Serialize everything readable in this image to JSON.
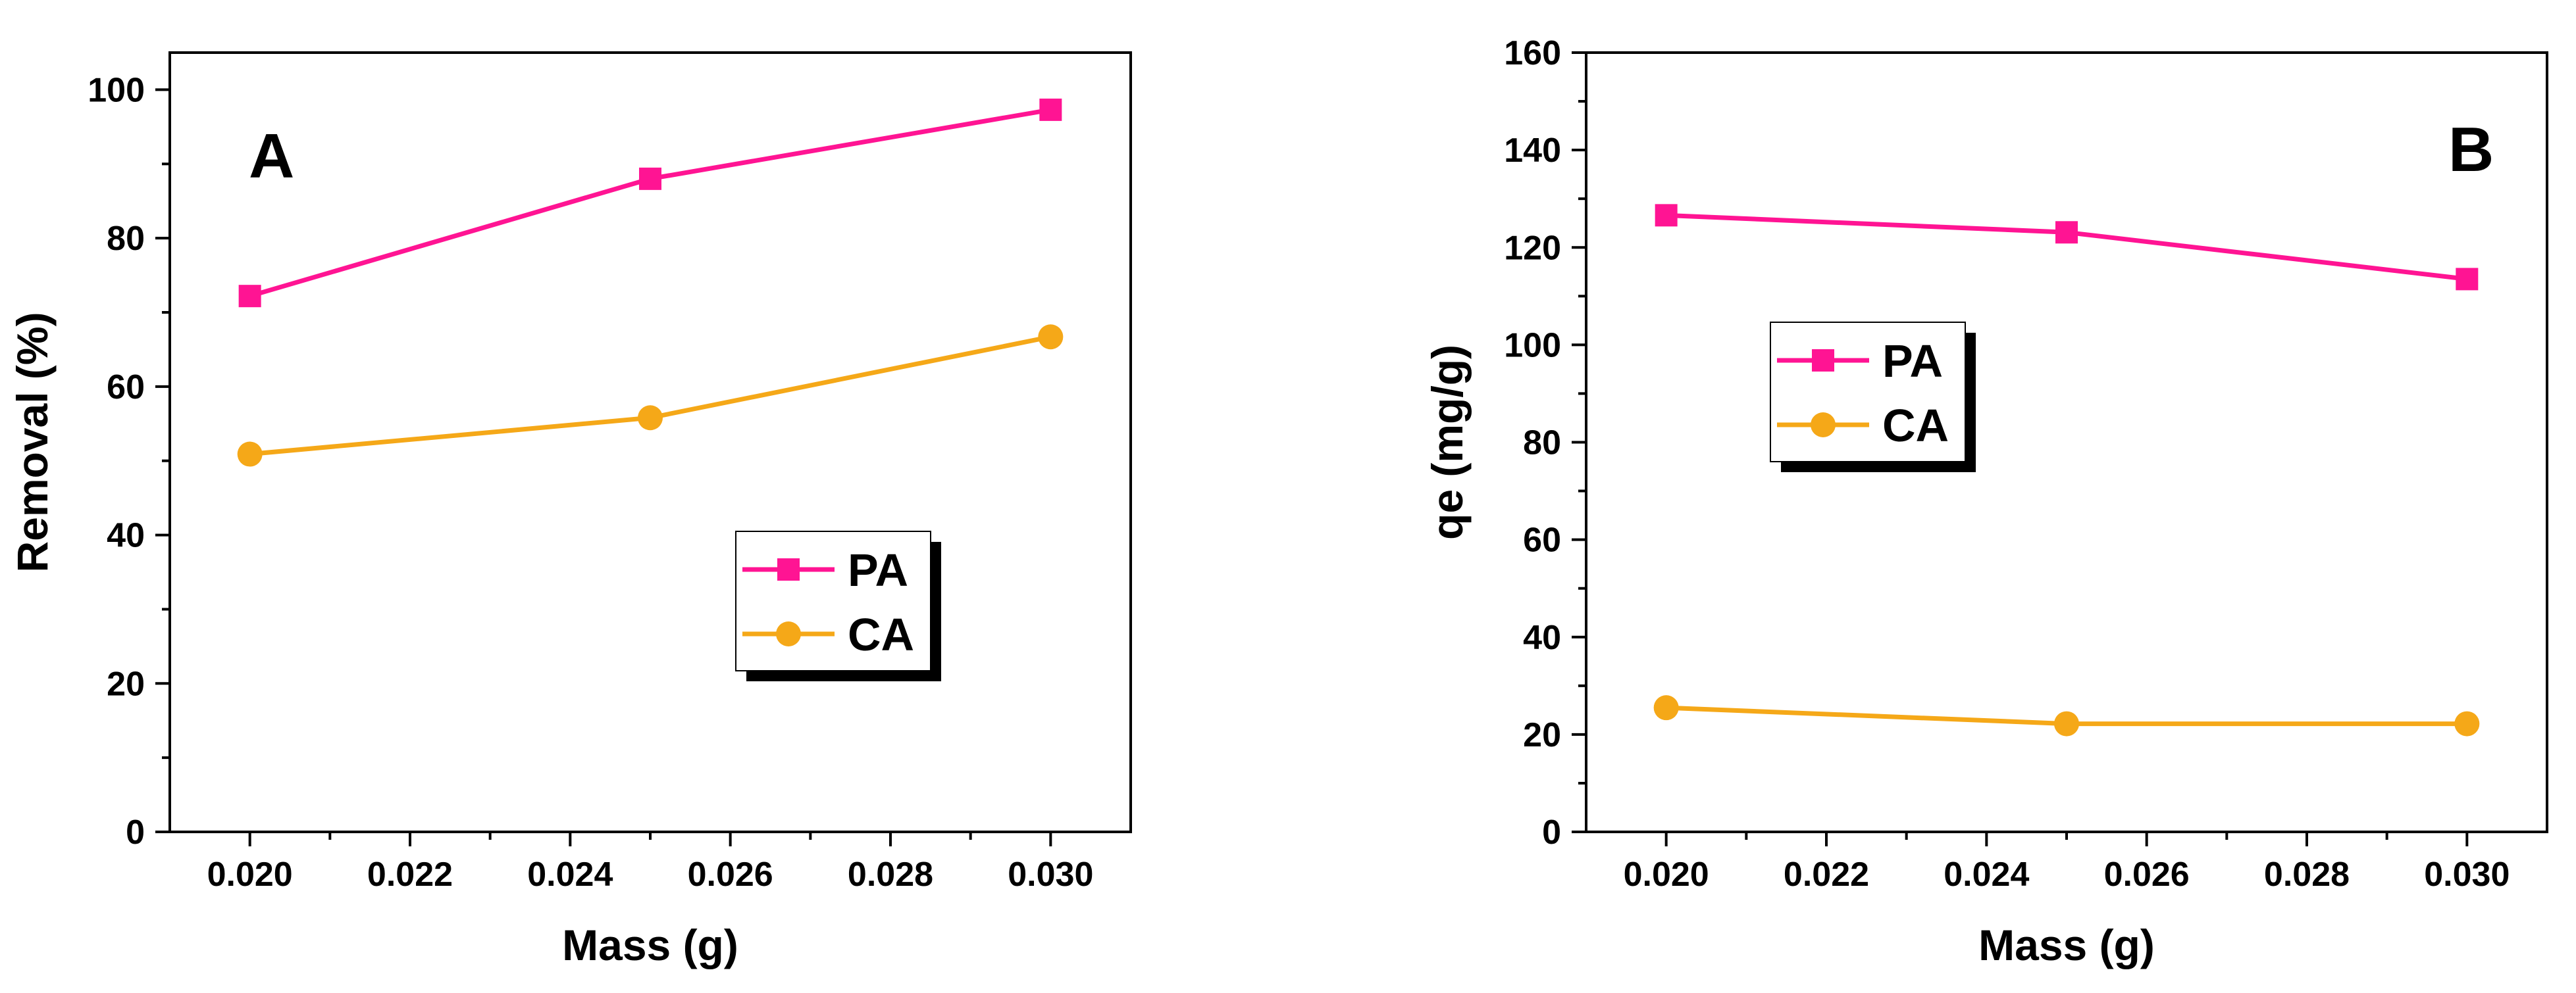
{
  "chart_data": [
    {
      "type": "line",
      "panel_label": "A",
      "xlabel": "Mass (g)",
      "ylabel": "Removal (%)",
      "x": [
        0.02,
        0.025,
        0.03
      ],
      "xlim": [
        0.019,
        0.031
      ],
      "ylim": [
        0,
        105
      ],
      "xticks": [
        "0.020",
        "0.022",
        "0.024",
        "0.026",
        "0.028",
        "0.030"
      ],
      "yticks": [
        "0",
        "20",
        "40",
        "60",
        "80",
        "100"
      ],
      "legend_position": "lower-right",
      "series": [
        {
          "name": "PA",
          "marker": "square",
          "color": "#ff1493",
          "values": [
            72.2,
            88.0,
            97.3
          ]
        },
        {
          "name": "CA",
          "marker": "circle",
          "color": "#f5a818",
          "values": [
            50.9,
            55.8,
            66.7
          ]
        }
      ]
    },
    {
      "type": "line",
      "panel_label": "B",
      "xlabel": "Mass (g)",
      "ylabel": "qe (mg/g)",
      "x": [
        0.02,
        0.025,
        0.03
      ],
      "xlim": [
        0.019,
        0.031
      ],
      "ylim": [
        0,
        160
      ],
      "xticks": [
        "0.020",
        "0.022",
        "0.024",
        "0.026",
        "0.028",
        "0.030"
      ],
      "yticks": [
        "0",
        "20",
        "40",
        "60",
        "80",
        "100",
        "120",
        "140",
        "160"
      ],
      "legend_position": "upper-left",
      "series": [
        {
          "name": "PA",
          "marker": "square",
          "color": "#ff1493",
          "values": [
            126.6,
            123.1,
            113.5
          ]
        },
        {
          "name": "CA",
          "marker": "circle",
          "color": "#f5a818",
          "values": [
            25.5,
            22.2,
            22.2
          ]
        }
      ]
    }
  ]
}
